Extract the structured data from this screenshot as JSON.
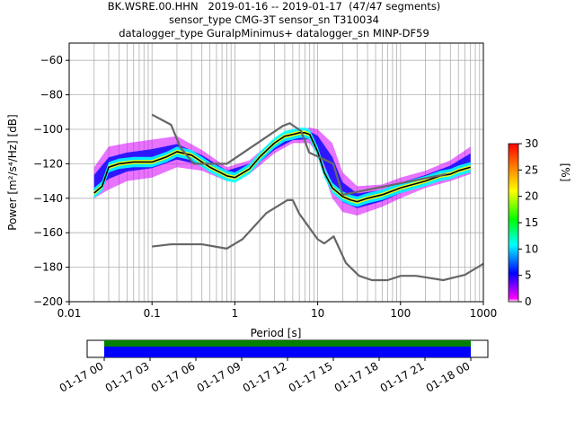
{
  "title_lines": [
    "BK.WSRE.00.HHN   2019-01-16 -- 2019-01-17  (47/47 segments)",
    "sensor_type CMG-3T sensor_sn T310034",
    "datalogger_type GuralpMinimus+ datalogger_sn MINP-DF59"
  ],
  "chart_data": {
    "type": "heatmap",
    "xlabel": "Period [s]",
    "ylabel": "Power [m²/s⁴/Hz] [dB]",
    "x_scale": "log",
    "xlim": [
      0.01,
      1000
    ],
    "ylim": [
      -200,
      -50
    ],
    "x_ticks": [
      0.01,
      0.1,
      1,
      10,
      100,
      1000
    ],
    "x_tick_labels": [
      "0.01",
      "0.1",
      "1",
      "10",
      "100",
      "1000"
    ],
    "y_ticks": [
      -200,
      -180,
      -160,
      -140,
      -120,
      -100,
      -80,
      -60
    ],
    "y_tick_labels": [
      "−200",
      "−180",
      "−160",
      "−140",
      "−120",
      "−100",
      "−80",
      "−60"
    ],
    "grid": true,
    "colorbar": {
      "label": "[%]",
      "range": [
        0,
        30
      ],
      "ticks": [
        0,
        5,
        10,
        15,
        20,
        25,
        30
      ],
      "tick_labels": [
        "0",
        "5",
        "10",
        "15",
        "20",
        "25",
        "30"
      ]
    },
    "series": [
      {
        "role": "mode",
        "color": "#000000",
        "x": [
          0.02,
          0.025,
          0.03,
          0.04,
          0.06,
          0.1,
          0.15,
          0.2,
          0.3,
          0.5,
          0.8,
          1.0,
          1.5,
          2,
          3,
          4,
          5,
          6,
          7,
          8,
          10,
          12,
          15,
          20,
          25,
          30,
          40,
          60,
          100,
          200,
          300,
          400,
          500,
          700
        ],
        "y": [
          -137,
          -133,
          -122,
          -120,
          -119,
          -119,
          -116,
          -113,
          -115,
          -122,
          -127,
          -128,
          -123,
          -116,
          -108,
          -104,
          -103,
          -102,
          -102,
          -103,
          -113,
          -125,
          -134,
          -139,
          -141,
          -142,
          -140,
          -138,
          -134,
          -130,
          -127,
          -126,
          -124,
          -122
        ]
      },
      {
        "role": "NHNM",
        "color": "#666666",
        "x": [
          0.1,
          0.17,
          0.22,
          0.32,
          0.8,
          3.8,
          4.6,
          6.3,
          7.9,
          15.4,
          20,
          354.8
        ],
        "y": [
          -91.5,
          -97.4,
          -110.5,
          -120,
          -120,
          -98,
          -96.5,
          -101,
          -113.5,
          -120,
          -138,
          -126
        ]
      },
      {
        "role": "NLNM",
        "color": "#666666",
        "x": [
          0.1,
          0.17,
          0.4,
          0.8,
          1.24,
          2.4,
          4.3,
          5,
          6,
          10,
          12,
          15.6,
          21.9,
          31.6,
          45,
          70,
          101,
          154,
          328,
          600,
          1000
        ],
        "y": [
          -168,
          -166.7,
          -166.7,
          -169.2,
          -163.7,
          -148.6,
          -141.1,
          -141.1,
          -149,
          -163.8,
          -166.2,
          -162.1,
          -177.5,
          -185,
          -187.5,
          -187.5,
          -185,
          -185,
          -187.5,
          -184.4,
          -178
        ]
      }
    ],
    "density_band": {
      "period": [
        0.02,
        0.03,
        0.05,
        0.1,
        0.2,
        0.4,
        0.8,
        1.5,
        3,
        5,
        8,
        10,
        15,
        20,
        30,
        60,
        100,
        200,
        400,
        700
      ],
      "upper": [
        -122,
        -110,
        -108,
        -106,
        -104,
        -112,
        -122,
        -118,
        -106,
        -101,
        -99,
        -100,
        -108,
        -125,
        -133,
        -132,
        -128,
        -124,
        -118,
        -110
      ],
      "lower": [
        -140,
        -135,
        -130,
        -128,
        -122,
        -124,
        -130,
        -126,
        -114,
        -108,
        -108,
        -115,
        -140,
        -148,
        -150,
        -145,
        -140,
        -134,
        -130,
        -126
      ]
    },
    "time_coverage": {
      "start_label": "01-17 00",
      "tick_labels": [
        "01-17 00",
        "01-17 03",
        "01-17 06",
        "01-17 09",
        "01-17 12",
        "01-17 15",
        "01-17 18",
        "01-17 21",
        "01-18 00"
      ],
      "data_color": "#0000ff",
      "gap_color": "#008000"
    }
  }
}
